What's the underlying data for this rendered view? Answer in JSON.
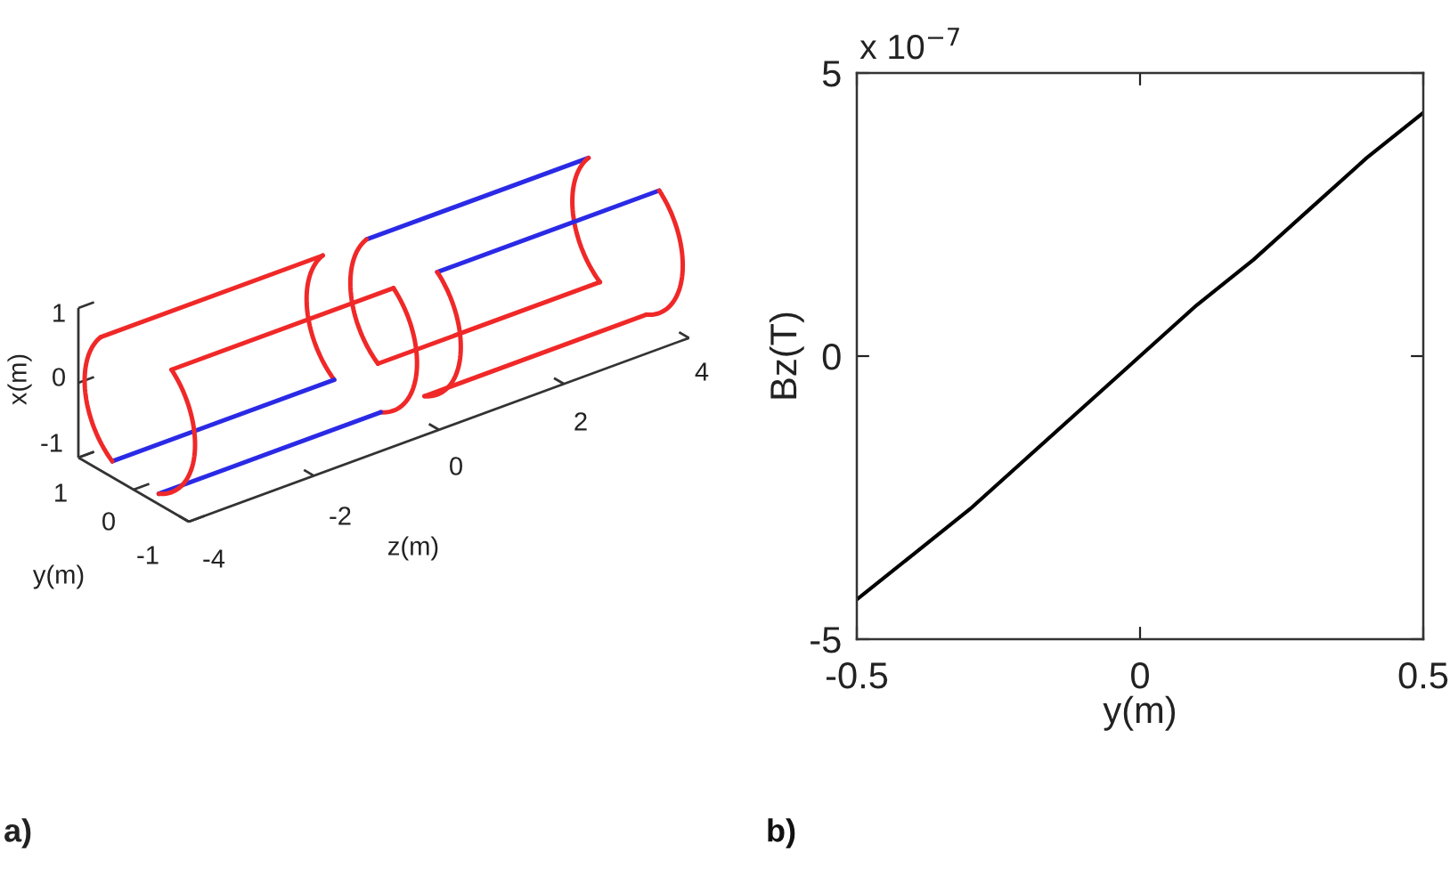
{
  "chart_data": [
    {
      "type": "other",
      "annotations": [
        "x(m)",
        "1",
        "0",
        "-1",
        "y(m)",
        "1",
        "0",
        "-1",
        "z(m)",
        "-4",
        "-2",
        "0",
        "2",
        "4",
        "a)"
      ]
    },
    {
      "type": "line",
      "xlabel": "y(m)",
      "ylabel": "Bz(T)",
      "x": [
        -0.5,
        -0.4,
        -0.3,
        -0.2,
        -0.1,
        0,
        0.1,
        0.2,
        0.3,
        0.4,
        0.5
      ],
      "series": [
        {
          "color": "#000000",
          "values": [
            -4.3,
            -3.5,
            -2.7,
            -1.8,
            -0.9,
            0,
            0.9,
            1.7,
            2.6,
            3.5,
            4.3
          ]
        }
      ],
      "xlim": [
        -0.5,
        0.5
      ],
      "xticks": [
        -0.5,
        0,
        0.5
      ],
      "ylim": [
        -5,
        5
      ],
      "yticks": [
        -5,
        0,
        5
      ],
      "annotations": [
        "x 10$^{−7}$",
        "b)"
      ]
    }
  ]
}
